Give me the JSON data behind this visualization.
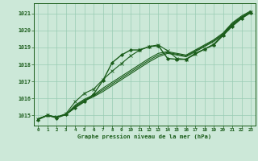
{
  "background_color": "#cce8d8",
  "grid_color": "#99ccb3",
  "line_color": "#1a5c1a",
  "title": "Graphe pression niveau de la mer (hPa)",
  "xlim": [
    -0.5,
    23.5
  ],
  "ylim": [
    1014.4,
    1021.6
  ],
  "yticks": [
    1015,
    1016,
    1017,
    1018,
    1019,
    1020,
    1021
  ],
  "xticks": [
    0,
    1,
    2,
    3,
    4,
    5,
    6,
    7,
    8,
    9,
    10,
    11,
    12,
    13,
    14,
    15,
    16,
    17,
    18,
    19,
    20,
    21,
    22,
    23
  ],
  "lines": [
    {
      "y": [
        1014.8,
        1015.0,
        1014.9,
        1015.05,
        1015.5,
        1015.85,
        1016.1,
        1016.4,
        1016.75,
        1017.1,
        1017.45,
        1017.8,
        1018.15,
        1018.45,
        1018.65,
        1018.55,
        1018.45,
        1018.75,
        1019.05,
        1019.35,
        1019.75,
        1020.35,
        1020.75,
        1021.05
      ],
      "lw": 0.8,
      "marker": null,
      "alpha": 1.0
    },
    {
      "y": [
        1014.8,
        1015.0,
        1014.9,
        1015.05,
        1015.55,
        1015.9,
        1016.15,
        1016.5,
        1016.85,
        1017.2,
        1017.55,
        1017.9,
        1018.25,
        1018.55,
        1018.7,
        1018.6,
        1018.5,
        1018.8,
        1019.1,
        1019.4,
        1019.8,
        1020.4,
        1020.8,
        1021.1
      ],
      "lw": 0.8,
      "marker": null,
      "alpha": 1.0
    },
    {
      "y": [
        1014.8,
        1015.0,
        1014.9,
        1015.05,
        1015.6,
        1015.95,
        1016.2,
        1016.6,
        1016.95,
        1017.3,
        1017.65,
        1018.0,
        1018.35,
        1018.65,
        1018.75,
        1018.65,
        1018.55,
        1018.85,
        1019.15,
        1019.45,
        1019.85,
        1020.45,
        1020.85,
        1021.15
      ],
      "lw": 0.8,
      "marker": null,
      "alpha": 1.0
    },
    {
      "y": [
        1014.8,
        1015.0,
        1014.9,
        1015.1,
        1015.8,
        1016.3,
        1016.55,
        1017.1,
        1017.6,
        1018.05,
        1018.5,
        1018.85,
        1019.05,
        1019.15,
        1018.8,
        1018.35,
        1018.3,
        1018.6,
        1018.9,
        1019.2,
        1019.75,
        1020.3,
        1020.75,
        1021.1
      ],
      "lw": 0.8,
      "marker": "x",
      "markersize": 2.5,
      "alpha": 1.0
    },
    {
      "y": [
        1014.75,
        1015.0,
        1014.85,
        1015.05,
        1015.45,
        1015.8,
        1016.25,
        1017.05,
        1018.1,
        1018.55,
        1018.85,
        1018.85,
        1019.05,
        1019.1,
        1018.35,
        1018.3,
        1018.3,
        1018.65,
        1018.9,
        1019.15,
        1019.7,
        1020.25,
        1020.7,
        1021.05
      ],
      "lw": 1.0,
      "marker": "D",
      "markersize": 2.0,
      "alpha": 1.0
    }
  ]
}
